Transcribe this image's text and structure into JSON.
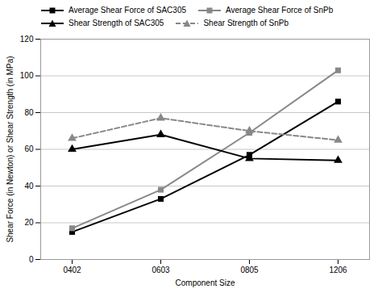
{
  "chart_data": {
    "type": "line",
    "categories": [
      "0402",
      "0603",
      "0805",
      "1206"
    ],
    "series": [
      {
        "name": "Average Shear Force of SAC305",
        "color": "#000000",
        "values": [
          15,
          33,
          57,
          86
        ],
        "marker": "square",
        "line_style": "solid"
      },
      {
        "name": "Average Shear Force of SnPb",
        "color": "#888888",
        "values": [
          17,
          38,
          69,
          103
        ],
        "marker": "square",
        "line_style": "solid"
      },
      {
        "name": "Shear Strength of SAC305",
        "color": "#000000",
        "values": [
          60,
          68,
          55,
          54
        ],
        "marker": "triangle",
        "line_style": "solid"
      },
      {
        "name": "Shear Strength of SnPb",
        "color": "#888888",
        "values": [
          66,
          77,
          70,
          65
        ],
        "marker": "triangle",
        "line_style": "dashed"
      }
    ],
    "xlabel": "Component Size",
    "ylabel": "Shear Force (in Newton) or Shear Strength (in MPa)",
    "ylim": [
      0,
      120
    ],
    "yticks": [
      0,
      20,
      40,
      60,
      80,
      100,
      120
    ],
    "grid": true,
    "legend": "upper left"
  }
}
